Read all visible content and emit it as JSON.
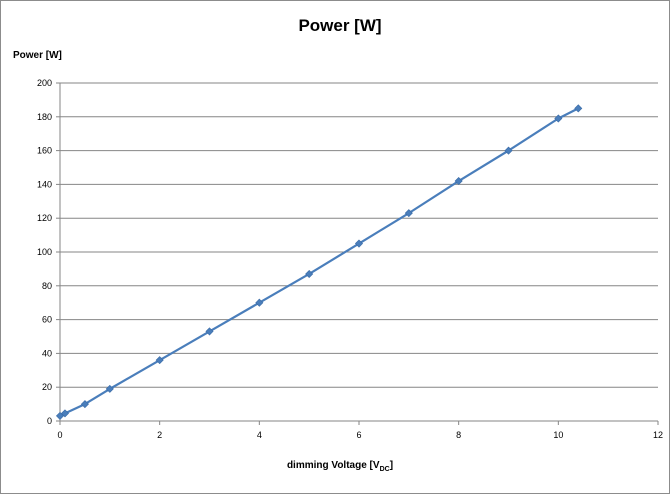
{
  "chart_data": {
    "type": "line",
    "title": "Power [W]",
    "ylabel": "Power [W]",
    "xlabel": "dimming Voltage [V",
    "xlabel_subscript": "DC",
    "xlabel_suffix": "]",
    "xlim": [
      0,
      12
    ],
    "ylim": [
      0,
      200
    ],
    "x_ticks": [
      0,
      2,
      4,
      6,
      8,
      10,
      12
    ],
    "y_ticks": [
      0,
      20,
      40,
      60,
      80,
      100,
      120,
      140,
      160,
      180,
      200
    ],
    "grid": "horizontal",
    "legend": "none",
    "series": [
      {
        "color": "#4a7ebb",
        "marker": "diamond",
        "x": [
          0,
          0.1,
          0.5,
          1,
          2,
          3,
          4,
          5,
          6,
          7,
          8,
          9,
          10,
          10.4
        ],
        "y": [
          3,
          4.5,
          10,
          19,
          36,
          53,
          70,
          87,
          105,
          123,
          142,
          160,
          179,
          185
        ]
      }
    ]
  }
}
